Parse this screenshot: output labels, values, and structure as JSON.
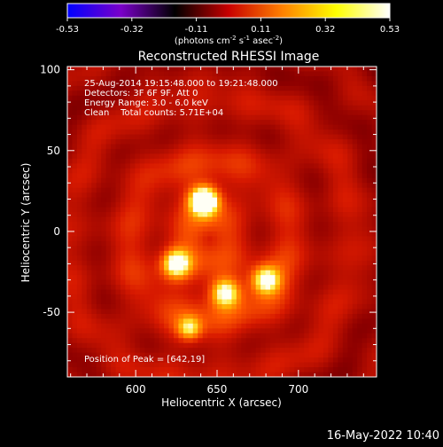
{
  "colorbar": {
    "ticks": [
      "-0.53",
      "-0.32",
      "-0.11",
      "0.11",
      "0.32",
      "0.53"
    ],
    "units_main": "(photons cm",
    "units_exp1": "-2",
    "units_mid": " s",
    "units_exp2": "-1",
    "units_mid2": " asec",
    "units_exp3": "-2",
    "units_end": ")",
    "colors": [
      "#0000ff",
      "#7a00c8",
      "#000000",
      "#c80000",
      "#ff8000",
      "#ffff00",
      "#ffffff"
    ]
  },
  "chart_data": {
    "type": "heatmap",
    "title": "Reconstructed RHESSI Image",
    "xlabel": "Heliocentric X (arcsec)",
    "ylabel": "Heliocentric Y (arcsec)",
    "xlim": [
      558,
      748
    ],
    "ylim": [
      -90,
      102
    ],
    "xticks": [
      "600",
      "650",
      "700"
    ],
    "xtick_values": [
      600,
      650,
      700
    ],
    "yticks": [
      "100",
      "50",
      "0",
      "-50"
    ],
    "ytick_values": [
      100,
      50,
      0,
      -50
    ],
    "sources": [
      {
        "x": 642,
        "y": 19,
        "sigma": 6,
        "amp": 1.0
      },
      {
        "x": 625,
        "y": -20,
        "sigma": 6,
        "amp": 0.7
      },
      {
        "x": 680,
        "y": -30,
        "sigma": 6,
        "amp": 0.62
      },
      {
        "x": 655,
        "y": -38,
        "sigma": 6,
        "amp": 0.62
      },
      {
        "x": 633,
        "y": -60,
        "sigma": 5,
        "amp": 0.45
      }
    ],
    "background_level": 0.38,
    "annotations": {
      "time": "25-Aug-2014 19:15:48.000 to 19:21:48.000",
      "detectors": "Detectors: 3F 6F 9F, Att 0",
      "energy": "Energy Range: 3.0 - 6.0 keV",
      "clean": "Clean    Total counts: 5.71E+04",
      "peak": "Position of Peak = [642,19]"
    }
  },
  "footer": {
    "timestamp": "16-May-2022 10:40"
  }
}
